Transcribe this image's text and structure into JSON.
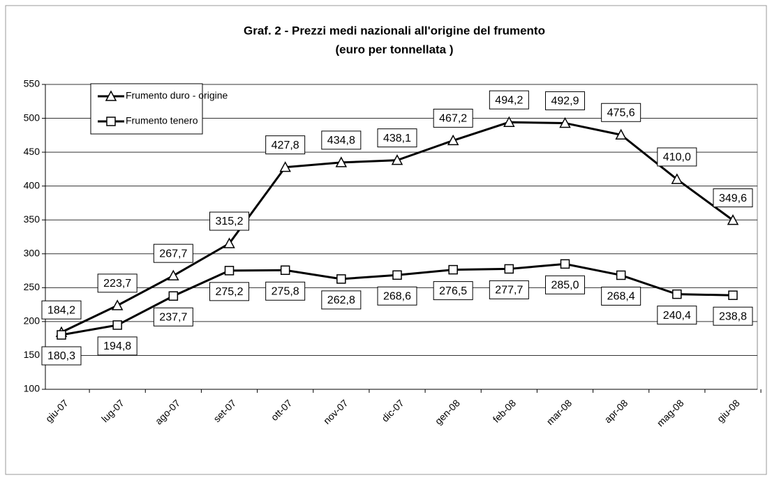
{
  "chart_data": {
    "type": "line",
    "title": "Graf. 2 - Prezzi medi nazionali all'origine del frumento",
    "subtitle": "(euro per tonnellata )",
    "categories": [
      "giu-07",
      "lug-07",
      "ago-07",
      "set-07",
      "ott-07",
      "nov-07",
      "dic-07",
      "gen-08",
      "feb-08",
      "mar-08",
      "apr-08",
      "mag-08",
      "giu-08"
    ],
    "series": [
      {
        "name": "Frumento duro - origine",
        "color": "#000000",
        "marker": "triangle",
        "values": [
          184.2,
          223.7,
          267.7,
          315.2,
          427.8,
          434.8,
          438.1,
          467.2,
          494.2,
          492.9,
          475.6,
          410.0,
          349.6
        ],
        "value_labels": [
          "184,2",
          "223,7",
          "267,7",
          "315,2",
          "427,8",
          "434,8",
          "438,1",
          "467,2",
          "494,2",
          "492,9",
          "475,6",
          "410,0",
          "349,6"
        ]
      },
      {
        "name": "Frumento tenero",
        "color": "#000000",
        "marker": "square",
        "values": [
          180.3,
          194.8,
          237.7,
          275.2,
          275.8,
          262.8,
          268.6,
          276.5,
          277.7,
          285.0,
          268.4,
          240.4,
          238.8
        ],
        "value_labels": [
          "180,3",
          "194,8",
          "237,7",
          "275,2",
          "275,8",
          "262,8",
          "268,6",
          "276,5",
          "277,7",
          "285,0",
          "268,4",
          "240,4",
          "238,8"
        ]
      }
    ],
    "ylim": [
      100,
      550
    ],
    "yticks": [
      100,
      150,
      200,
      250,
      300,
      350,
      400,
      450,
      500,
      550
    ],
    "grid": true,
    "legend": "upper left"
  }
}
